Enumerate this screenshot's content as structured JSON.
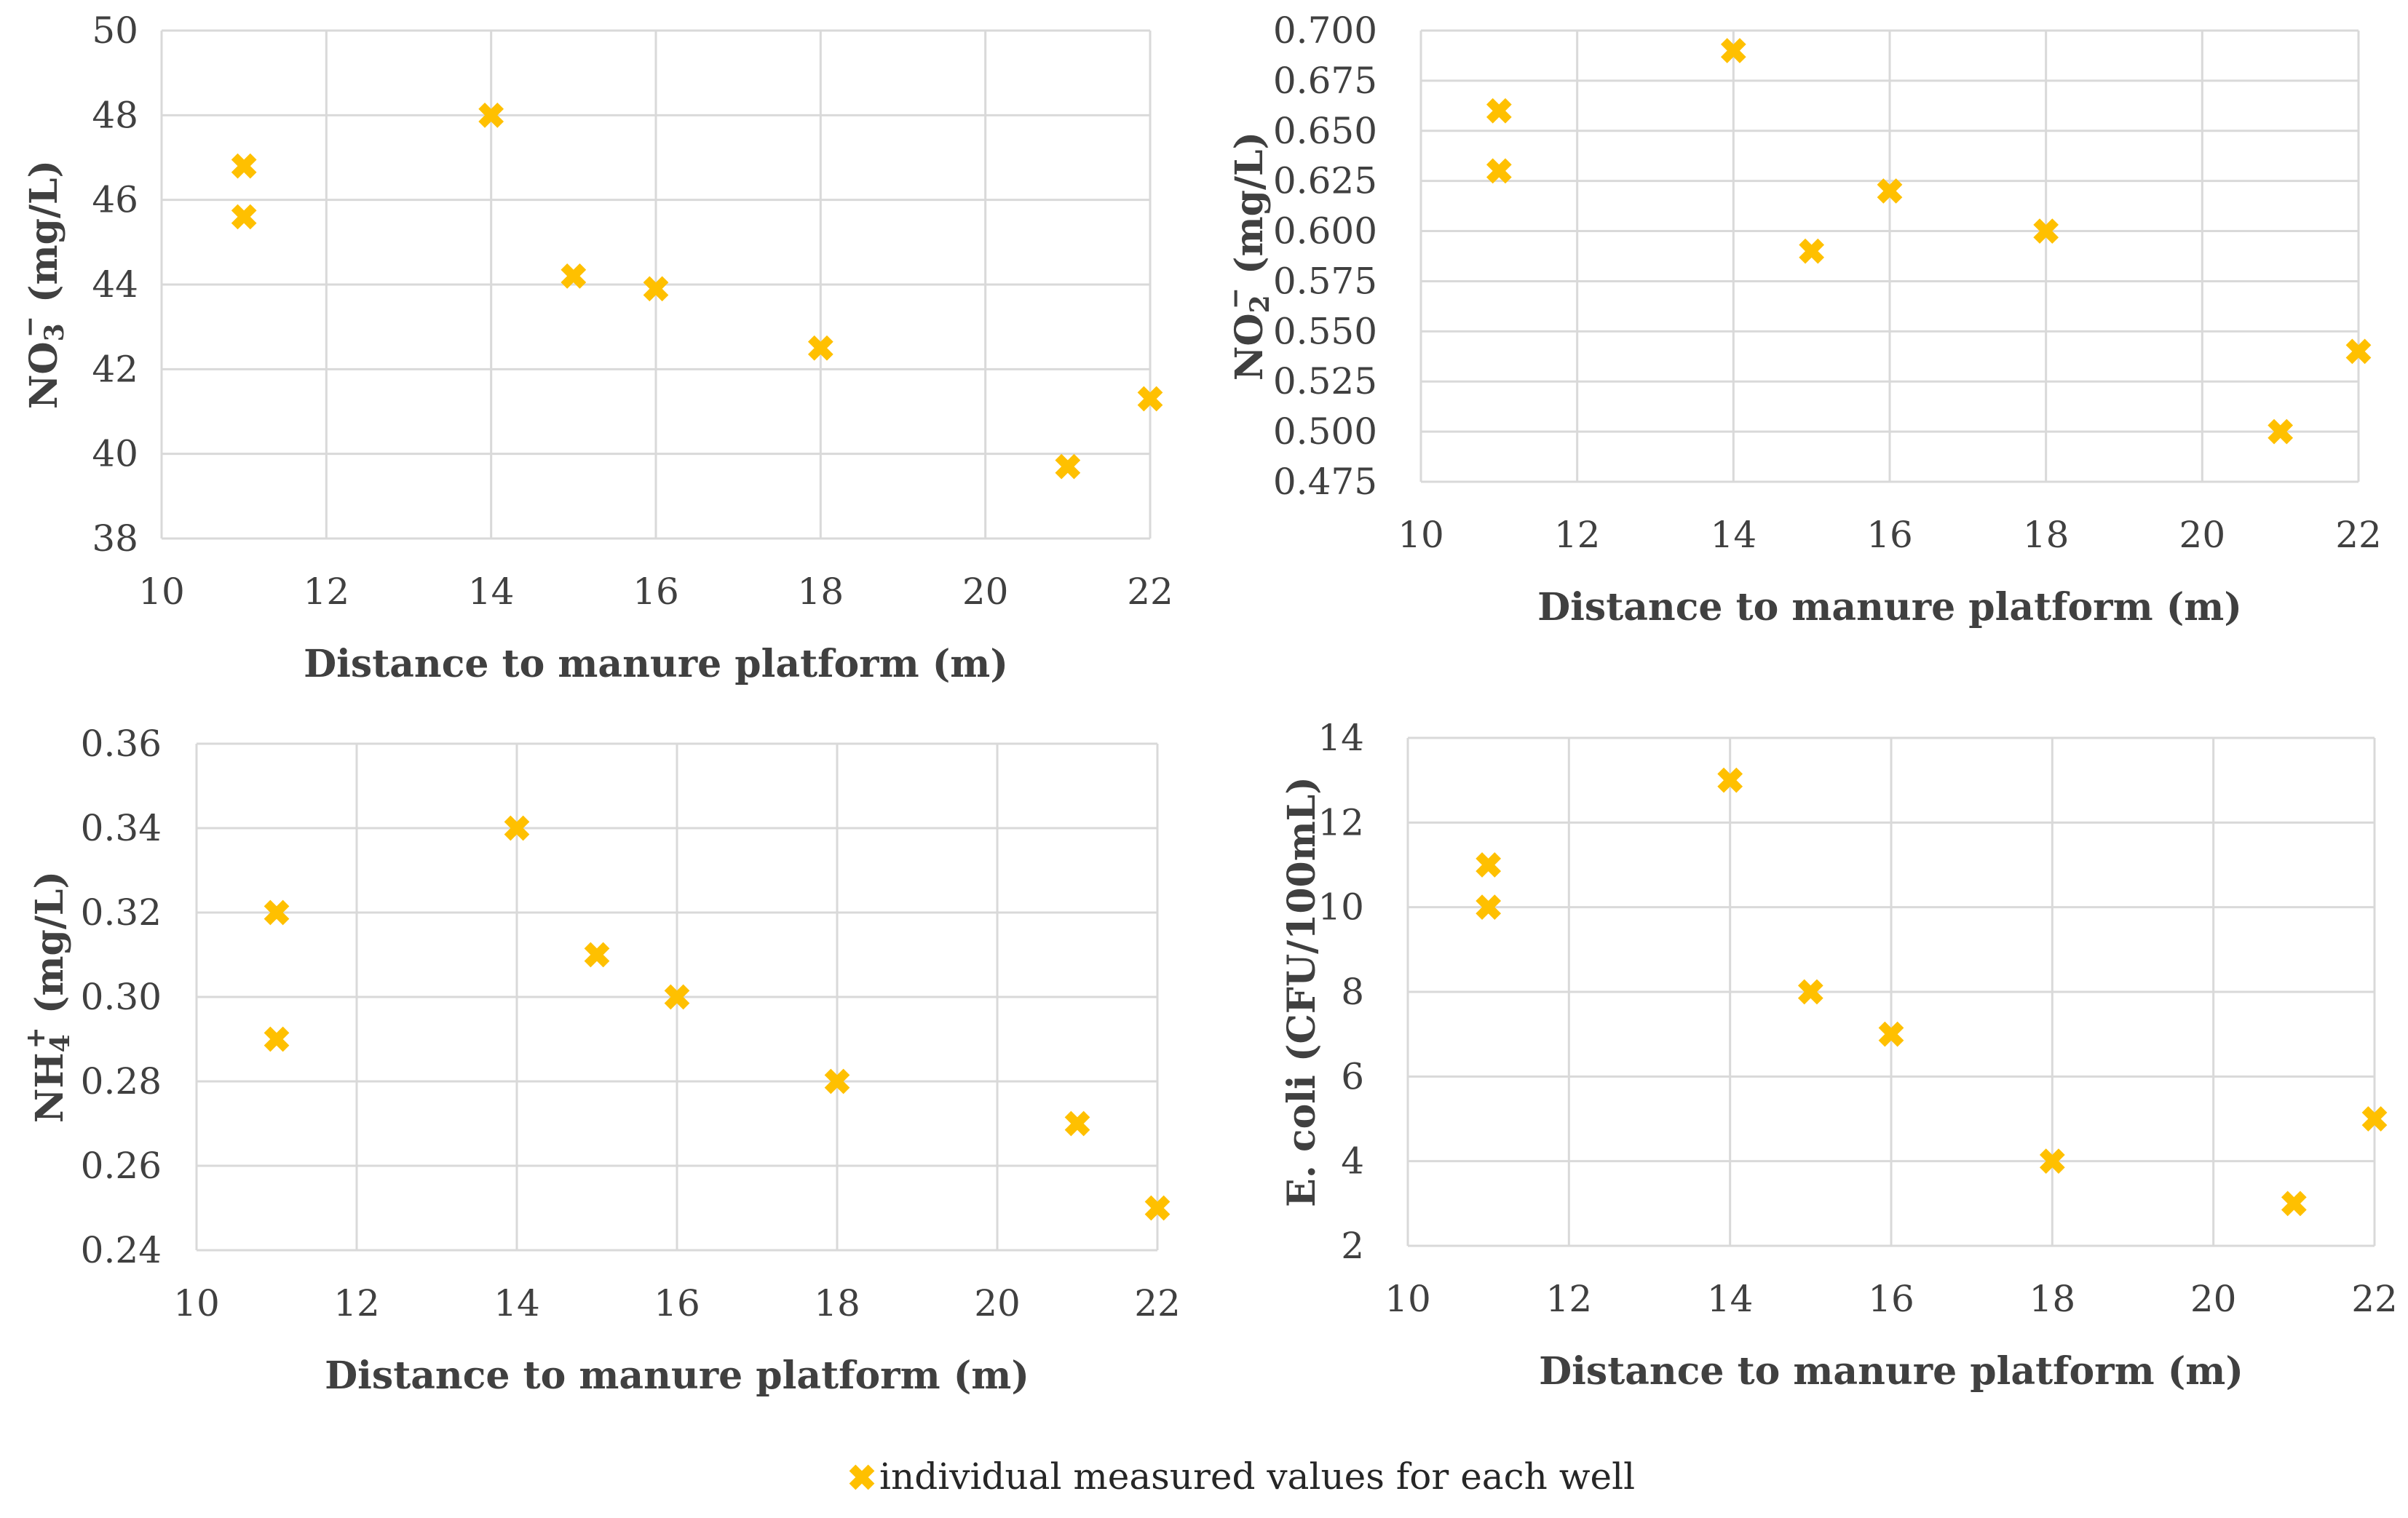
{
  "marker_color": "#FFC000",
  "grid_color": "#D9D9D9",
  "text_color": "#404040",
  "legend": {
    "label": "individual measured values for each well"
  },
  "chart_data": [
    {
      "id": "no3",
      "type": "scatter",
      "xlabel": "Distance to manure platform (m)",
      "ylabel_parts": [
        "NO",
        "3",
        "−",
        " (mg/L)"
      ],
      "xlim": [
        10,
        22
      ],
      "ylim": [
        38,
        50
      ],
      "xticks": [
        "10",
        "12",
        "14",
        "16",
        "18",
        "20",
        "22"
      ],
      "yticks": [
        "38",
        "40",
        "42",
        "44",
        "46",
        "48",
        "50"
      ],
      "x": [
        11,
        11,
        14,
        15,
        16,
        18,
        21,
        22
      ],
      "y": [
        46.8,
        45.6,
        48.0,
        44.2,
        43.9,
        42.5,
        39.7,
        41.3
      ]
    },
    {
      "id": "no2",
      "type": "scatter",
      "xlabel": "Distance to manure platform (m)",
      "ylabel_parts": [
        "NO",
        "2",
        "−",
        " (mg/L)"
      ],
      "xlim": [
        10,
        22
      ],
      "ylim": [
        0.475,
        0.7
      ],
      "xticks": [
        "10",
        "12",
        "14",
        "16",
        "18",
        "20",
        "22"
      ],
      "yticks": [
        "0.475",
        "0.500",
        "0.525",
        "0.550",
        "0.575",
        "0.600",
        "0.625",
        "0.650",
        "0.675",
        "0.700"
      ],
      "x": [
        11,
        11,
        14,
        15,
        16,
        18,
        21,
        22
      ],
      "y": [
        0.66,
        0.63,
        0.69,
        0.59,
        0.62,
        0.6,
        0.5,
        0.54
      ]
    },
    {
      "id": "nh4",
      "type": "scatter",
      "xlabel": "Distance to manure platform (m)",
      "ylabel_parts": [
        "NH",
        "4",
        "+",
        " (mg/L)"
      ],
      "xlim": [
        10,
        22
      ],
      "ylim": [
        0.24,
        0.36
      ],
      "xticks": [
        "10",
        "12",
        "14",
        "16",
        "18",
        "20",
        "22"
      ],
      "yticks": [
        "0.24",
        "0.26",
        "0.28",
        "0.30",
        "0.32",
        "0.34",
        "0.36"
      ],
      "x": [
        11,
        11,
        14,
        15,
        16,
        18,
        21,
        22
      ],
      "y": [
        0.32,
        0.29,
        0.34,
        0.31,
        0.3,
        0.28,
        0.27,
        0.25
      ]
    },
    {
      "id": "ecoli",
      "type": "scatter",
      "xlabel": "Distance to manure platform (m)",
      "ylabel_parts": [
        "E. coli (CFU/100mL)",
        "",
        "",
        ""
      ],
      "xlim": [
        10,
        22
      ],
      "ylim": [
        2,
        14
      ],
      "xticks": [
        "10",
        "12",
        "14",
        "16",
        "18",
        "20",
        "22"
      ],
      "yticks": [
        "2",
        "4",
        "6",
        "8",
        "10",
        "12",
        "14"
      ],
      "x": [
        11,
        11,
        14,
        15,
        16,
        18,
        21,
        22
      ],
      "y": [
        11,
        10,
        13,
        8,
        7,
        4,
        3,
        5
      ]
    }
  ]
}
